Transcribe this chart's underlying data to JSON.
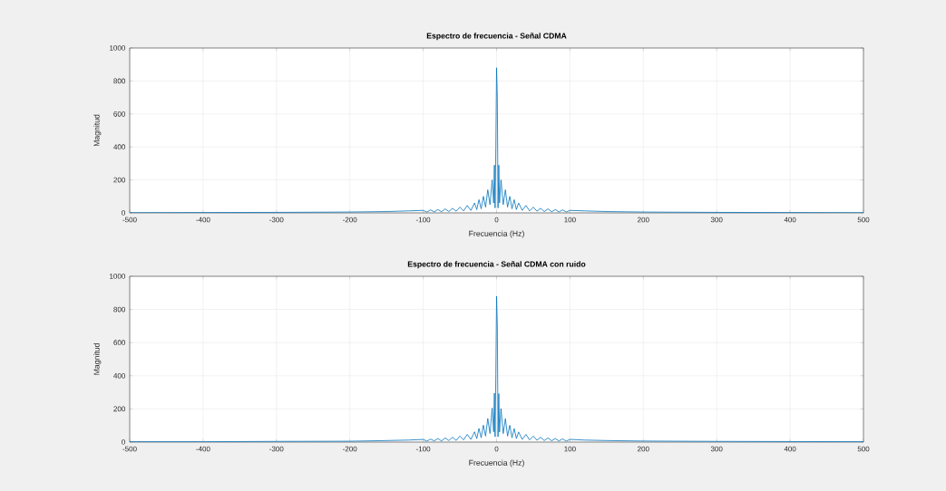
{
  "chart_data": [
    {
      "type": "line",
      "title": "Espectro de frecuencia - Señal CDMA",
      "xlabel": "Frecuencia (Hz)",
      "ylabel": "Magnitud",
      "xlim": [
        -500,
        500
      ],
      "ylim": [
        0,
        1000
      ],
      "xticks": [
        -500,
        -400,
        -300,
        -200,
        -100,
        0,
        100,
        200,
        300,
        400,
        500
      ],
      "yticks": [
        0,
        200,
        400,
        600,
        800,
        1000
      ],
      "grid": true,
      "series": [
        {
          "color": "#0072bd",
          "x": [
            -500,
            -400,
            -300,
            -200,
            -150,
            -120,
            -100,
            -95,
            -90,
            -85,
            -80,
            -75,
            -70,
            -65,
            -60,
            -55,
            -50,
            -45,
            -40,
            -35,
            -30,
            -27,
            -24,
            -21,
            -18,
            -15,
            -12,
            -9,
            -6,
            -4,
            -3,
            -2,
            -1,
            0,
            1,
            2,
            3,
            4,
            6,
            9,
            12,
            15,
            18,
            21,
            24,
            27,
            30,
            35,
            40,
            45,
            50,
            55,
            60,
            65,
            70,
            75,
            80,
            85,
            90,
            95,
            100,
            120,
            150,
            200,
            300,
            400,
            500
          ],
          "values": [
            1,
            2,
            3,
            5,
            8,
            12,
            15,
            5,
            18,
            6,
            20,
            7,
            24,
            8,
            28,
            10,
            35,
            12,
            45,
            15,
            60,
            20,
            80,
            25,
            100,
            35,
            140,
            50,
            200,
            60,
            290,
            30,
            400,
            880,
            700,
            30,
            290,
            60,
            200,
            50,
            140,
            35,
            100,
            25,
            80,
            20,
            60,
            15,
            45,
            12,
            35,
            10,
            28,
            8,
            24,
            7,
            20,
            6,
            18,
            5,
            15,
            12,
            8,
            5,
            3,
            2,
            1
          ]
        }
      ]
    },
    {
      "type": "line",
      "title": "Espectro de frecuencia - Señal CDMA con ruido",
      "xlabel": "Frecuencia (Hz)",
      "ylabel": "Magnitud",
      "xlim": [
        -500,
        500
      ],
      "ylim": [
        0,
        1000
      ],
      "xticks": [
        -500,
        -400,
        -300,
        -200,
        -100,
        0,
        100,
        200,
        300,
        400,
        500
      ],
      "yticks": [
        0,
        200,
        400,
        600,
        800,
        1000
      ],
      "grid": true,
      "series": [
        {
          "color": "#0072bd",
          "x": [
            -500,
            -400,
            -300,
            -200,
            -150,
            -120,
            -100,
            -95,
            -90,
            -85,
            -80,
            -75,
            -70,
            -65,
            -60,
            -55,
            -50,
            -45,
            -40,
            -35,
            -30,
            -27,
            -24,
            -21,
            -18,
            -15,
            -12,
            -9,
            -6,
            -4,
            -3,
            -2,
            -1,
            0,
            1,
            2,
            3,
            4,
            6,
            9,
            12,
            15,
            18,
            21,
            24,
            27,
            30,
            35,
            40,
            45,
            50,
            55,
            60,
            65,
            70,
            75,
            80,
            85,
            90,
            95,
            100,
            120,
            150,
            200,
            300,
            400,
            500
          ],
          "values": [
            2,
            2,
            4,
            5,
            9,
            12,
            16,
            6,
            18,
            7,
            21,
            7,
            25,
            9,
            29,
            10,
            36,
            13,
            46,
            16,
            62,
            21,
            82,
            26,
            102,
            36,
            142,
            52,
            205,
            62,
            295,
            32,
            405,
            880,
            705,
            32,
            292,
            61,
            202,
            51,
            141,
            36,
            101,
            26,
            81,
            21,
            61,
            16,
            46,
            13,
            36,
            11,
            29,
            9,
            25,
            8,
            21,
            7,
            19,
            6,
            16,
            12,
            9,
            6,
            4,
            3,
            2
          ]
        }
      ]
    }
  ]
}
